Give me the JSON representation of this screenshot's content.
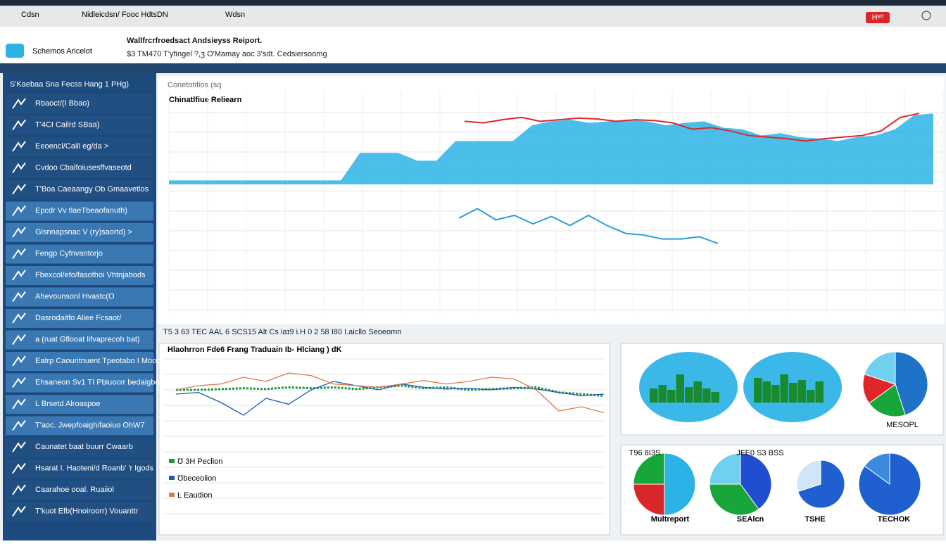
{
  "header": {
    "nav": [
      "Cdsn",
      "Nidleicdsn/ Fooc HdtsDN",
      "Wdsn"
    ],
    "badge": "Hᵉᵗᵗ",
    "app_name": "Schemos Aricelot",
    "title": "Wallfrcrfroedsact Andsieyss Reiport.",
    "subtitle": "$3 TM470 T'yfingel ?,ʒ O'Mamay aoc 3'sdt. Cedsiersoomg"
  },
  "sidebar": {
    "heading": "S'Kaebaa Sna Fecss  Hang 1 PHg)",
    "items": [
      "Rbaoct/(I Bbao)",
      "T'4CI Cailrd SBaa)",
      "Eeoencl/Caill eg/da >",
      "Cvdoo Cbalfoiusesffvaseotd",
      "T'Boa Caeaangy Ob Gmaavetlos",
      "Epcdr Vv tlaeTbeaofanuth)",
      "Gisnnapsnac V (ry)saortd) >",
      "Fengp Cyfnvantorjo",
      "Fbexcol/efo/fasothoi Vhtnjabods",
      "Ahevounsonl Hvastc(O",
      "Dasrodaitfo Aliee Fcsaot/",
      "a (ruat Gflooat lifvaprecoh bat)",
      "Eatrp Caouritnuent Tpeotabo I Mooof",
      "Ehsaneon Sv1 TI Pbiuocrr bedaigbor",
      "L Brsetd Alroaspoe",
      "T'aoc. Jwepfoaigh/faoiuo OhW7",
      "Caunatet baat buurr Cwaarb",
      "Hsarat I. Haoteni/d Roanb' 'r Igods",
      "Caarahoe ooal. Ruaiiol",
      "T'kuot Efb(Hnoiroorr) Vouanttr"
    ]
  },
  "main_chart": {
    "panel_label": "Conetotifios (sq",
    "title": "Chinatlfiue Reliearn",
    "area": {
      "color": "#2bb3e6",
      "values": [
        5,
        5,
        5,
        5,
        5,
        5,
        5,
        5,
        5,
        5,
        40,
        40,
        40,
        30,
        30,
        55,
        55,
        55,
        55,
        75,
        80,
        82,
        78,
        80,
        82,
        80,
        75,
        78,
        80,
        72,
        70,
        62,
        65,
        60,
        58,
        55,
        60,
        62,
        70,
        88,
        90
      ]
    },
    "trend": {
      "color": "#e0262a",
      "values": [
        80,
        78,
        82,
        85,
        80,
        82,
        84,
        83,
        80,
        82,
        81,
        78,
        70,
        72,
        68,
        62,
        60,
        58,
        55,
        58,
        60,
        62,
        68,
        85,
        90
      ]
    },
    "line": {
      "color": "#2a9fd8",
      "values": [
        75,
        92,
        72,
        80,
        65,
        78,
        62,
        80,
        62,
        48,
        45,
        38,
        38,
        42,
        30
      ]
    }
  },
  "section_label": "T5 3 63 TEC AAL 6 SCS15 Alt Cs iaɪ9 i.H 0 2 58 I80 I.aicllo Seoeomn",
  "trading_chart": {
    "title": "Hlaohrron Fde6  Frang Traduain Ib- Hlciang ) dK",
    "legend": [
      "Ʊ 3H Peclion",
      "Ʊbeceolion",
      "Ŀ Eaudion"
    ],
    "series": [
      {
        "color": "#1a9b3a",
        "values": [
          55,
          55,
          56,
          57,
          56,
          58,
          57,
          58,
          56,
          58,
          60,
          57,
          58,
          55,
          56,
          57,
          58,
          52,
          50,
          48
        ]
      },
      {
        "color": "#2457b5",
        "values": [
          50,
          52,
          40,
          25,
          45,
          38,
          55,
          65,
          60,
          55,
          62,
          58,
          56,
          57,
          55,
          58,
          56,
          52,
          48,
          50
        ]
      },
      {
        "color": "#e0784a",
        "values": [
          55,
          60,
          62,
          70,
          65,
          75,
          72,
          62,
          60,
          58,
          62,
          66,
          62,
          65,
          70,
          68,
          55,
          30,
          35,
          28
        ]
      }
    ]
  },
  "pies_top": {
    "bar_ovals": [
      [
        20,
        25,
        18,
        40,
        22,
        30,
        20,
        15
      ],
      [
        35,
        30,
        25,
        40,
        28,
        32,
        18,
        30
      ]
    ],
    "pie": {
      "label": "MESOPL",
      "values": [
        45,
        20,
        15,
        20
      ],
      "colors": [
        "#1e73c8",
        "#18a53a",
        "#e0262a",
        "#6fd0f0"
      ]
    }
  },
  "pies_bottom": {
    "labels": [
      "T96 8I3S",
      "JFE0 S3 BSS",
      "Multreport",
      "SEAlcn",
      "TSHE",
      "TECHOK"
    ],
    "pies": [
      {
        "values": [
          50,
          25,
          25
        ],
        "colors": [
          "#2bb3e6",
          "#d9262a",
          "#18a53a"
        ]
      },
      {
        "values": [
          40,
          35,
          25
        ],
        "colors": [
          "#1f4fd0",
          "#18a53a",
          "#6fd0f0"
        ]
      },
      {
        "values": [
          70,
          30
        ],
        "colors": [
          "#1f5fd0",
          "#cfe6f8"
        ]
      },
      {
        "values": [
          85,
          15
        ],
        "colors": [
          "#1f5fd0",
          "#3a8ae0"
        ]
      }
    ]
  }
}
